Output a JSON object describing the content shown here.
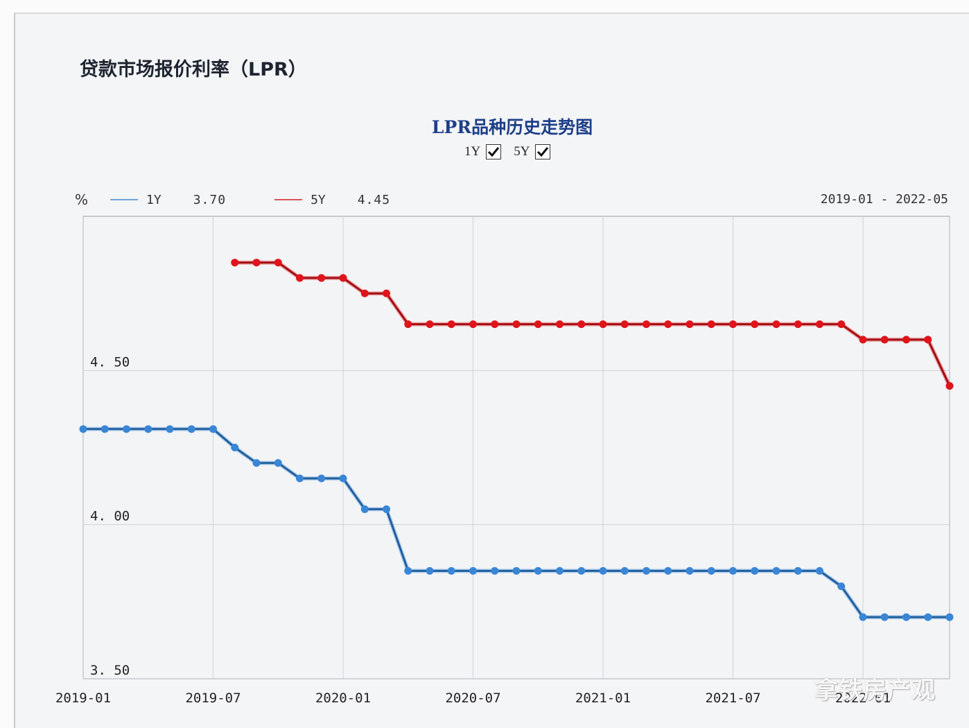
{
  "page": {
    "title": "贷款市场报价利率（LPR）",
    "watermark": "拿铁房产观"
  },
  "chart": {
    "title": "LPR品种历史走势图",
    "toggles": [
      {
        "label": "1Y",
        "checked": true
      },
      {
        "label": "5Y",
        "checked": true
      }
    ],
    "unit": "%",
    "legend": [
      {
        "name": "1Y",
        "latest": "3.70",
        "color": "#3a86d6"
      },
      {
        "name": "5Y",
        "latest": "4.45",
        "color": "#e0141b"
      }
    ],
    "date_range": "2019-01 - 2022-05"
  },
  "chart_data": {
    "type": "line",
    "title": "LPR品种历史走势图",
    "xlabel": "",
    "ylabel": "%",
    "ylim": [
      3.5,
      5.0
    ],
    "yticks": [
      "3.50",
      "4.00",
      "4.50"
    ],
    "xticks": [
      "2019-01",
      "2019-07",
      "2020-01",
      "2020-07",
      "2021-01",
      "2021-07",
      "2022-01"
    ],
    "grid": true,
    "legend_position": "top-left",
    "x": [
      "2019-01",
      "2019-02",
      "2019-03",
      "2019-04",
      "2019-05",
      "2019-06",
      "2019-07",
      "2019-08",
      "2019-09",
      "2019-10",
      "2019-11",
      "2019-12",
      "2020-01",
      "2020-02",
      "2020-03",
      "2020-04",
      "2020-05",
      "2020-06",
      "2020-07",
      "2020-08",
      "2020-09",
      "2020-10",
      "2020-11",
      "2020-12",
      "2021-01",
      "2021-02",
      "2021-03",
      "2021-04",
      "2021-05",
      "2021-06",
      "2021-07",
      "2021-08",
      "2021-09",
      "2021-10",
      "2021-11",
      "2021-12",
      "2022-01",
      "2022-02",
      "2022-03",
      "2022-04",
      "2022-05"
    ],
    "series": [
      {
        "name": "1Y",
        "color": "#3a86d6",
        "values": [
          4.31,
          4.31,
          4.31,
          4.31,
          4.31,
          4.31,
          4.31,
          4.25,
          4.2,
          4.2,
          4.15,
          4.15,
          4.15,
          4.05,
          4.05,
          3.85,
          3.85,
          3.85,
          3.85,
          3.85,
          3.85,
          3.85,
          3.85,
          3.85,
          3.85,
          3.85,
          3.85,
          3.85,
          3.85,
          3.85,
          3.85,
          3.85,
          3.85,
          3.85,
          3.85,
          3.8,
          3.7,
          3.7,
          3.7,
          3.7,
          3.7
        ]
      },
      {
        "name": "5Y",
        "color": "#e0141b",
        "values": [
          null,
          null,
          null,
          null,
          null,
          null,
          null,
          4.85,
          4.85,
          4.85,
          4.8,
          4.8,
          4.8,
          4.75,
          4.75,
          4.65,
          4.65,
          4.65,
          4.65,
          4.65,
          4.65,
          4.65,
          4.65,
          4.65,
          4.65,
          4.65,
          4.65,
          4.65,
          4.65,
          4.65,
          4.65,
          4.65,
          4.65,
          4.65,
          4.65,
          4.65,
          4.6,
          4.6,
          4.6,
          4.6,
          4.45
        ]
      }
    ]
  }
}
